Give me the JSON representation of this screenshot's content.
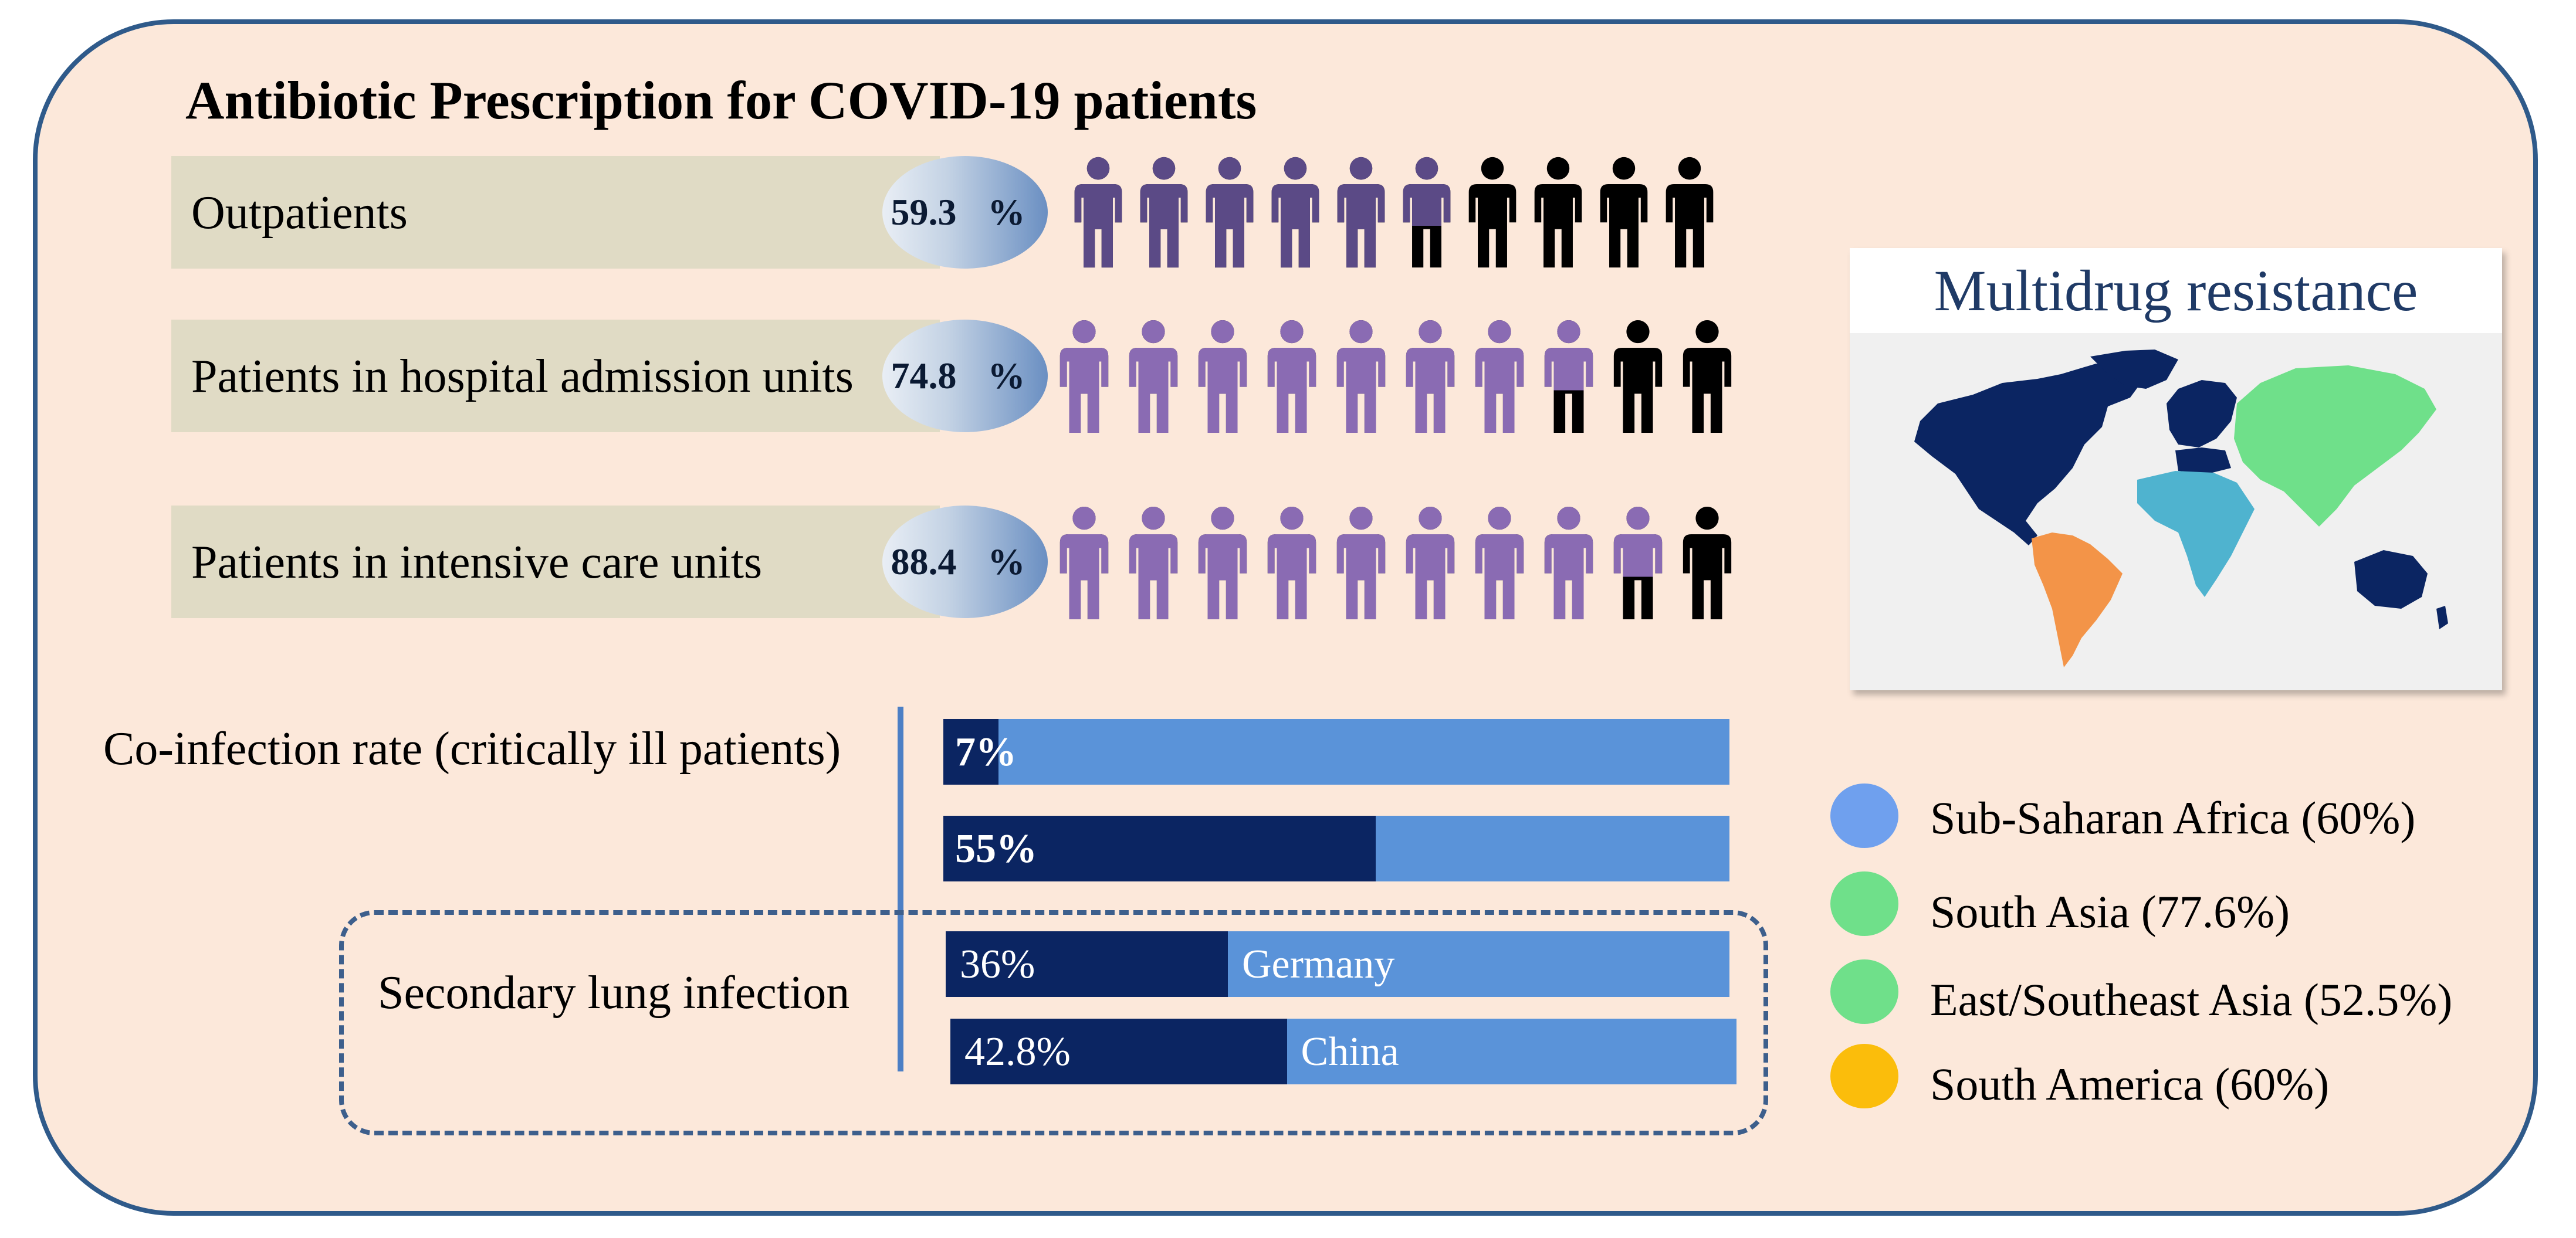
{
  "title": "Antibiotic Prescription for COVID-19 patients",
  "prescription": [
    {
      "label": "Outpatients",
      "pct_line1": "59.3",
      "pct_line2": "%",
      "value_percent": 59.3
    },
    {
      "label": "Patients in hospital admission units",
      "pct_line1": "74.8",
      "pct_line2": "%",
      "value_percent": 74.8
    },
    {
      "label": "Patients in intensive care units",
      "pct_line1": "88.4",
      "pct_line2": "%",
      "value_percent": 88.4
    }
  ],
  "coinfection": {
    "label": "Co-infection rate (critically ill patients)",
    "bars": [
      {
        "text": "7%",
        "value_percent": 7
      },
      {
        "text": "55%",
        "value_percent": 55
      }
    ]
  },
  "secondary": {
    "label": "Secondary lung infection",
    "bars": [
      {
        "text": "36%",
        "country": "Germany",
        "value_percent": 36
      },
      {
        "text": "42.8%",
        "country": "China",
        "value_percent": 42.8
      }
    ]
  },
  "map": {
    "title": "Multidrug resistance"
  },
  "legend": [
    {
      "label": "Sub-Saharan Africa (60%)",
      "color": "#6fa0ee"
    },
    {
      "label": "South Asia (77.6%)",
      "color": "#6fe08a"
    },
    {
      "label": "East/Southeast Asia (52.5%)",
      "color": "#6fe08a"
    },
    {
      "label": "South America (60%)",
      "color": "#fbbd0b"
    }
  ],
  "colors": {
    "purple_dark": "#5b4a86",
    "purple": "#8a6bb3",
    "black": "#000000",
    "bar_fill": "#0b2562",
    "bar_bg": "#5a93d9"
  }
}
